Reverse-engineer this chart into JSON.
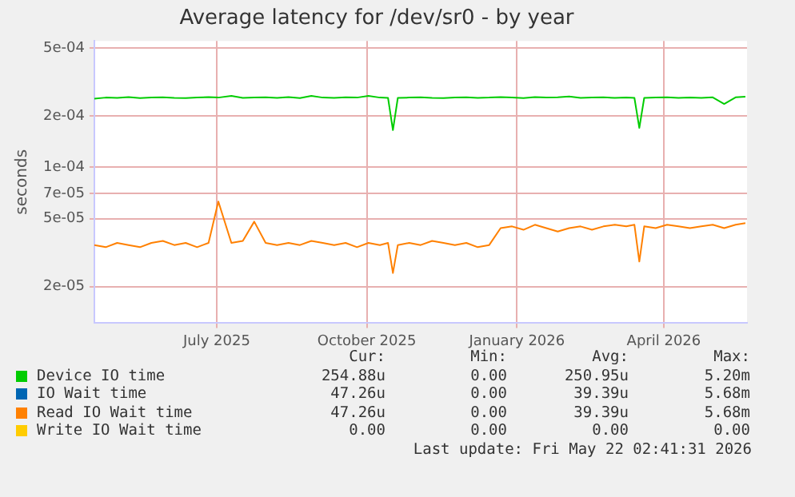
{
  "chart_data": {
    "type": "line",
    "title": "Average latency for /dev/sr0 - by year",
    "ylabel": "seconds",
    "log": "y",
    "grid": true,
    "legend": "bottom",
    "marker": "none",
    "x": [
      "2025-04-17",
      "2025-04-24",
      "2025-05-01",
      "2025-05-08",
      "2025-05-15",
      "2025-05-22",
      "2025-05-29",
      "2025-06-05",
      "2025-06-12",
      "2025-06-19",
      "2025-06-26",
      "2025-07-02",
      "2025-07-10",
      "2025-07-17",
      "2025-07-24",
      "2025-07-31",
      "2025-08-07",
      "2025-08-14",
      "2025-08-21",
      "2025-08-28",
      "2025-09-04",
      "2025-09-11",
      "2025-09-18",
      "2025-09-25",
      "2025-10-02",
      "2025-10-09",
      "2025-10-14",
      "2025-10-17",
      "2025-10-20",
      "2025-10-27",
      "2025-11-03",
      "2025-11-10",
      "2025-11-17",
      "2025-11-24",
      "2025-12-01",
      "2025-12-08",
      "2025-12-15",
      "2025-12-22",
      "2025-12-29",
      "2026-01-05",
      "2026-01-12",
      "2026-01-19",
      "2026-01-26",
      "2026-02-02",
      "2026-02-09",
      "2026-02-16",
      "2026-02-23",
      "2026-03-02",
      "2026-03-09",
      "2026-03-14",
      "2026-03-17",
      "2026-03-20",
      "2026-03-27",
      "2026-04-03",
      "2026-04-10",
      "2026-04-17",
      "2026-04-24",
      "2026-05-01",
      "2026-05-08",
      "2026-05-15",
      "2026-05-21"
    ],
    "xlim": [
      "2025-04-17",
      "2026-05-22"
    ],
    "xticks": [
      {
        "value": "2025-07-01",
        "label": "July 2025"
      },
      {
        "value": "2025-10-01",
        "label": "October 2025"
      },
      {
        "value": "2026-01-01",
        "label": "January 2026"
      },
      {
        "value": "2026-04-01",
        "label": "April 2026"
      }
    ],
    "ylim": [
      1.22e-05,
      0.00055
    ],
    "yticks": [
      {
        "value": 2e-05,
        "label": "2e-05"
      },
      {
        "value": 5e-05,
        "label": "5e-05"
      },
      {
        "value": 7e-05,
        "label": "7e-05"
      },
      {
        "value": 0.0001,
        "label": "1e-04"
      },
      {
        "value": 0.0002,
        "label": "2e-04"
      },
      {
        "value": 0.0005,
        "label": "5e-04"
      }
    ],
    "series": [
      {
        "name": "Device IO time",
        "color": "#00cc00",
        "values": [
          0.000252,
          0.000256,
          0.000255,
          0.000258,
          0.000254,
          0.000256,
          0.000257,
          0.000255,
          0.000254,
          0.000256,
          0.000258,
          0.000256,
          0.000262,
          0.000255,
          0.000256,
          0.000257,
          0.000255,
          0.000258,
          0.000254,
          0.000262,
          0.000256,
          0.000255,
          0.000257,
          0.000256,
          0.000262,
          0.000256,
          0.000255,
          0.000165,
          0.000255,
          0.000256,
          0.000257,
          0.000255,
          0.000254,
          0.000256,
          0.000257,
          0.000255,
          0.000256,
          0.000258,
          0.000256,
          0.000254,
          0.000258,
          0.000256,
          0.000257,
          0.00026,
          0.000255,
          0.000256,
          0.000257,
          0.000255,
          0.000256,
          0.000255,
          0.00017,
          0.000255,
          0.000256,
          0.000257,
          0.000255,
          0.000256,
          0.000255,
          0.000257,
          0.000235,
          0.000257,
          0.000259
        ]
      },
      {
        "name": "IO Wait time",
        "color": "#0066b3",
        "values": [
          null,
          null,
          null,
          null,
          null,
          null,
          null,
          null,
          null,
          null,
          null,
          null,
          null,
          null,
          null,
          null,
          null,
          null,
          null,
          null,
          null,
          null,
          null,
          null,
          null,
          null,
          null,
          null,
          null,
          null,
          null,
          null,
          null,
          null,
          null,
          null,
          null,
          null,
          null,
          null,
          null,
          null,
          null,
          null,
          null,
          null,
          null,
          null,
          null,
          null,
          null,
          null,
          null,
          null,
          null,
          null,
          null,
          null,
          null,
          null,
          null
        ]
      },
      {
        "name": "Read IO Wait time",
        "color": "#ff8000",
        "values": [
          3.5e-05,
          3.4e-05,
          3.6e-05,
          3.5e-05,
          3.4e-05,
          3.6e-05,
          3.7e-05,
          3.5e-05,
          3.6e-05,
          3.4e-05,
          3.6e-05,
          6.3e-05,
          3.6e-05,
          3.7e-05,
          4.8e-05,
          3.6e-05,
          3.5e-05,
          3.6e-05,
          3.5e-05,
          3.7e-05,
          3.6e-05,
          3.5e-05,
          3.6e-05,
          3.4e-05,
          3.6e-05,
          3.5e-05,
          3.6e-05,
          2.4e-05,
          3.5e-05,
          3.6e-05,
          3.5e-05,
          3.7e-05,
          3.6e-05,
          3.5e-05,
          3.6e-05,
          3.4e-05,
          3.5e-05,
          4.4e-05,
          4.5e-05,
          4.3e-05,
          4.6e-05,
          4.4e-05,
          4.2e-05,
          4.4e-05,
          4.5e-05,
          4.3e-05,
          4.5e-05,
          4.6e-05,
          4.5e-05,
          4.6e-05,
          2.8e-05,
          4.5e-05,
          4.4e-05,
          4.6e-05,
          4.5e-05,
          4.4e-05,
          4.5e-05,
          4.6e-05,
          4.4e-05,
          4.6e-05,
          4.7e-05
        ]
      },
      {
        "name": "Write IO Wait time",
        "color": "#ffcc00",
        "values": [
          null,
          null,
          null,
          null,
          null,
          null,
          null,
          null,
          null,
          null,
          null,
          null,
          null,
          null,
          null,
          null,
          null,
          null,
          null,
          null,
          null,
          null,
          null,
          null,
          null,
          null,
          null,
          null,
          null,
          null,
          null,
          null,
          null,
          null,
          null,
          null,
          null,
          null,
          null,
          null,
          null,
          null,
          null,
          null,
          null,
          null,
          null,
          null,
          null,
          null,
          null,
          null,
          null,
          null,
          null,
          null,
          null,
          null,
          null,
          null,
          null
        ]
      }
    ],
    "annotations": [
      "Cur:",
      "Min:",
      "Avg:",
      "Max:",
      "254.88u",
      "0.00",
      "250.95u",
      "5.20m",
      "47.26u",
      "0.00",
      "39.39u",
      "5.68m",
      "47.26u",
      "0.00",
      "39.39u",
      "5.68m",
      "0.00",
      "0.00",
      "0.00",
      "0.00",
      "Last update: Fri May 22 02:41:31 2026"
    ]
  }
}
